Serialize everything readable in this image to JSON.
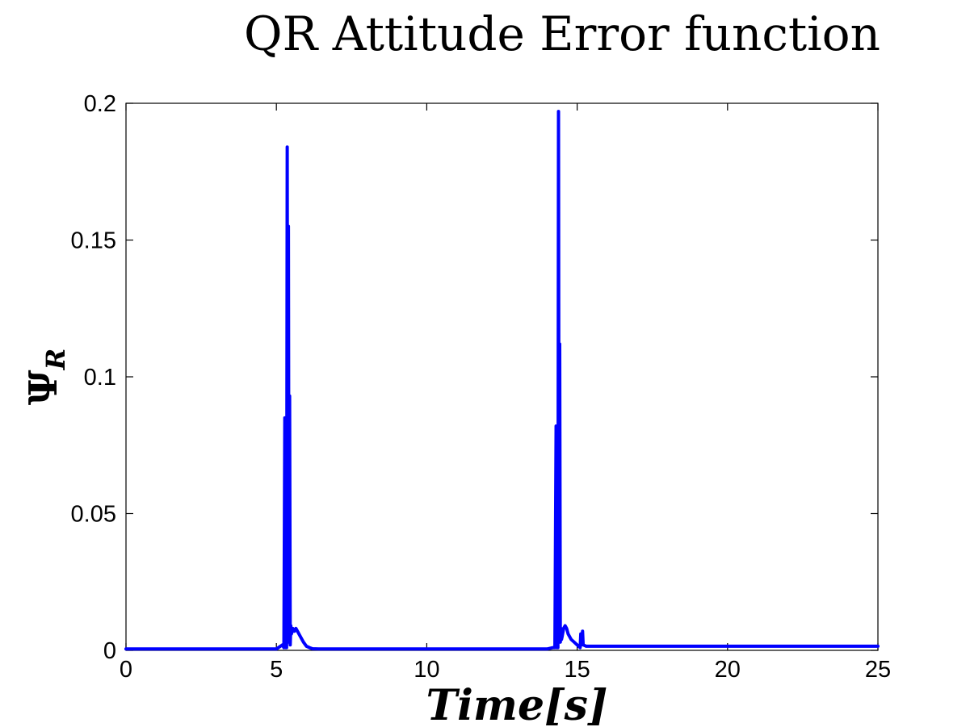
{
  "chart_data": {
    "type": "line",
    "title": "QR Attitude Error function",
    "xlabel": "Time[s]",
    "ylabel": "Ψ",
    "ylabel_subscript": "R",
    "xlim": [
      0,
      25
    ],
    "ylim": [
      0,
      0.2
    ],
    "xticks": [
      0,
      5,
      10,
      15,
      20,
      25
    ],
    "xtick_labels": [
      "0",
      "5",
      "10",
      "15",
      "20",
      "25"
    ],
    "yticks": [
      0,
      0.05,
      0.1,
      0.15,
      0.2
    ],
    "ytick_labels": [
      "0",
      "0.05",
      "0.1",
      "0.15",
      "0.2"
    ],
    "grid": false,
    "series": [
      {
        "color": "#0000ff",
        "x": [
          0,
          5.0,
          5.2,
          5.25,
          5.28,
          5.3,
          5.32,
          5.34,
          5.36,
          5.38,
          5.4,
          5.42,
          5.44,
          5.46,
          5.48,
          5.5,
          5.55,
          5.6,
          5.65,
          5.7,
          5.8,
          5.9,
          6.0,
          6.1,
          6.2,
          6.4,
          7.0,
          10.0,
          14.0,
          14.2,
          14.26,
          14.3,
          14.32,
          14.34,
          14.36,
          14.38,
          14.4,
          14.42,
          14.44,
          14.46,
          14.48,
          14.5,
          14.55,
          14.6,
          14.65,
          14.7,
          14.8,
          14.9,
          15.0,
          15.1,
          15.12,
          15.15,
          15.18,
          15.2,
          15.3,
          15.5,
          20.0,
          25.0
        ],
        "y": [
          0.0005,
          0.0005,
          0.002,
          0.001,
          0.085,
          0.001,
          0.08,
          0.001,
          0.184,
          0.004,
          0.155,
          0.003,
          0.093,
          0.002,
          0.009,
          0.006,
          0.008,
          0.007,
          0.008,
          0.007,
          0.005,
          0.003,
          0.0015,
          0.001,
          0.0006,
          0.0005,
          0.0005,
          0.0005,
          0.0005,
          0.001,
          0.001,
          0.082,
          0.001,
          0.081,
          0.001,
          0.197,
          0.004,
          0.112,
          0.003,
          0.008,
          0.004,
          0.005,
          0.008,
          0.009,
          0.008,
          0.006,
          0.004,
          0.003,
          0.002,
          0.001,
          0.006,
          0.002,
          0.007,
          0.002,
          0.0015,
          0.0015,
          0.0015,
          0.0015
        ]
      }
    ]
  }
}
